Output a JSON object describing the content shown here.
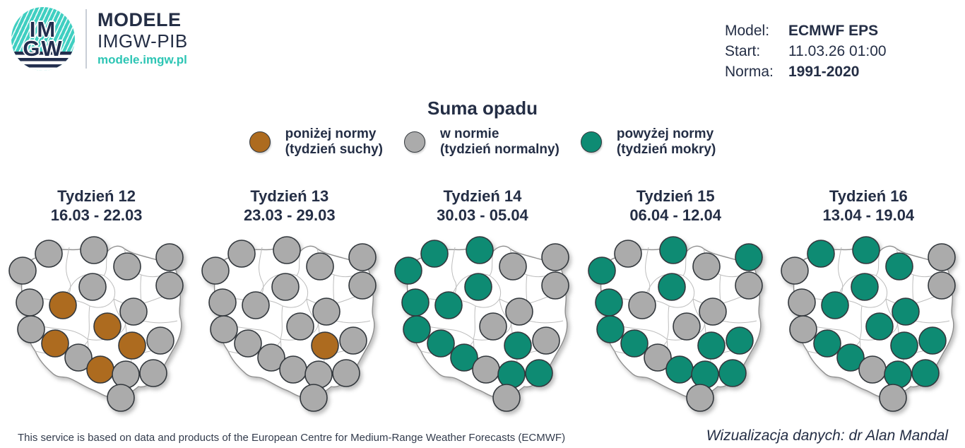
{
  "header": {
    "logo": {
      "acronym_top": "IM",
      "acronym_bottom": "GW",
      "brand_title": "MODELE",
      "brand_subtitle": "IMGW-PIB",
      "brand_url": "modele.imgw.pl"
    },
    "model_info": {
      "rows": [
        {
          "label": "Model:",
          "value": "ECMWF EPS",
          "bold": true
        },
        {
          "label": "Start:",
          "value": "11.03.26 01:00",
          "bold": false
        },
        {
          "label": "Norma:",
          "value": "1991-2020",
          "bold": true
        }
      ]
    }
  },
  "title": "Suma opadu",
  "legend": [
    {
      "key": "below",
      "line1": "poniżej normy",
      "line2": "(tydzień suchy)"
    },
    {
      "key": "normal",
      "line1": "w normie",
      "line2": "(tydzień normalny)"
    },
    {
      "key": "above",
      "line1": "powyżej normy",
      "line2": "(tydzień mokry)"
    }
  ],
  "colors": {
    "below": "#ad6b1f",
    "normal": "#ababab",
    "above": "#0e8b73",
    "dot_stroke": "#33383d",
    "navy": "#242e45",
    "brand_teal": "#2dc5b4"
  },
  "dot_positions": [
    [
      69,
      33
    ],
    [
      133,
      28
    ],
    [
      180,
      51
    ],
    [
      240,
      38
    ],
    [
      32,
      57
    ],
    [
      240,
      78
    ],
    [
      131,
      80
    ],
    [
      42,
      102
    ],
    [
      89,
      106
    ],
    [
      189,
      115
    ],
    [
      152,
      136
    ],
    [
      44,
      140
    ],
    [
      78,
      160
    ],
    [
      187,
      163
    ],
    [
      227,
      156
    ],
    [
      111,
      180
    ],
    [
      142,
      197
    ],
    [
      178,
      204
    ],
    [
      217,
      202
    ],
    [
      171,
      237
    ]
  ],
  "chart_data": {
    "type": "scatter",
    "title": "Suma opadu",
    "legend_entries": [
      "poniżej normy (tydzień suchy)",
      "w normie (tydzień normalny)",
      "powyżej normy (tydzień mokry)"
    ],
    "legend_position": "top",
    "value_categories": [
      "below",
      "normal",
      "above"
    ],
    "panels": [
      {
        "label": "Tydzień 12",
        "date_range": "16.03 - 22.03",
        "values": [
          "normal",
          "normal",
          "normal",
          "normal",
          "normal",
          "normal",
          "normal",
          "normal",
          "below",
          "normal",
          "below",
          "normal",
          "below",
          "below",
          "normal",
          "normal",
          "below",
          "normal",
          "normal",
          "normal"
        ],
        "counts": {
          "below": 5,
          "normal": 15,
          "above": 0
        }
      },
      {
        "label": "Tydzień 13",
        "date_range": "23.03 - 29.03",
        "values": [
          "normal",
          "normal",
          "normal",
          "normal",
          "normal",
          "normal",
          "normal",
          "normal",
          "normal",
          "normal",
          "normal",
          "normal",
          "normal",
          "below",
          "normal",
          "normal",
          "normal",
          "normal",
          "normal",
          "normal"
        ],
        "counts": {
          "below": 1,
          "normal": 19,
          "above": 0
        }
      },
      {
        "label": "Tydzień 14",
        "date_range": "30.03 - 05.04",
        "values": [
          "above",
          "above",
          "normal",
          "normal",
          "above",
          "normal",
          "above",
          "above",
          "above",
          "normal",
          "normal",
          "above",
          "above",
          "above",
          "normal",
          "above",
          "normal",
          "above",
          "above",
          "normal"
        ],
        "counts": {
          "below": 0,
          "normal": 8,
          "above": 12
        }
      },
      {
        "label": "Tydzień 15",
        "date_range": "06.04 - 12.04",
        "values": [
          "normal",
          "above",
          "normal",
          "above",
          "above",
          "normal",
          "above",
          "above",
          "normal",
          "normal",
          "normal",
          "above",
          "above",
          "above",
          "above",
          "normal",
          "above",
          "above",
          "above",
          "normal"
        ],
        "counts": {
          "below": 0,
          "normal": 8,
          "above": 12
        }
      },
      {
        "label": "Tydzień 16",
        "date_range": "13.04 - 19.04",
        "values": [
          "above",
          "above",
          "above",
          "normal",
          "normal",
          "normal",
          "above",
          "normal",
          "above",
          "above",
          "above",
          "normal",
          "above",
          "above",
          "above",
          "above",
          "normal",
          "above",
          "above",
          "normal"
        ],
        "counts": {
          "below": 0,
          "normal": 7,
          "above": 13
        }
      }
    ]
  },
  "footer": {
    "left": "This service is based on data and products of the European Centre for Medium-Range Weather Forecasts (ECMWF)",
    "right": "Wizualizacja danych: dr Alan Mandal"
  }
}
